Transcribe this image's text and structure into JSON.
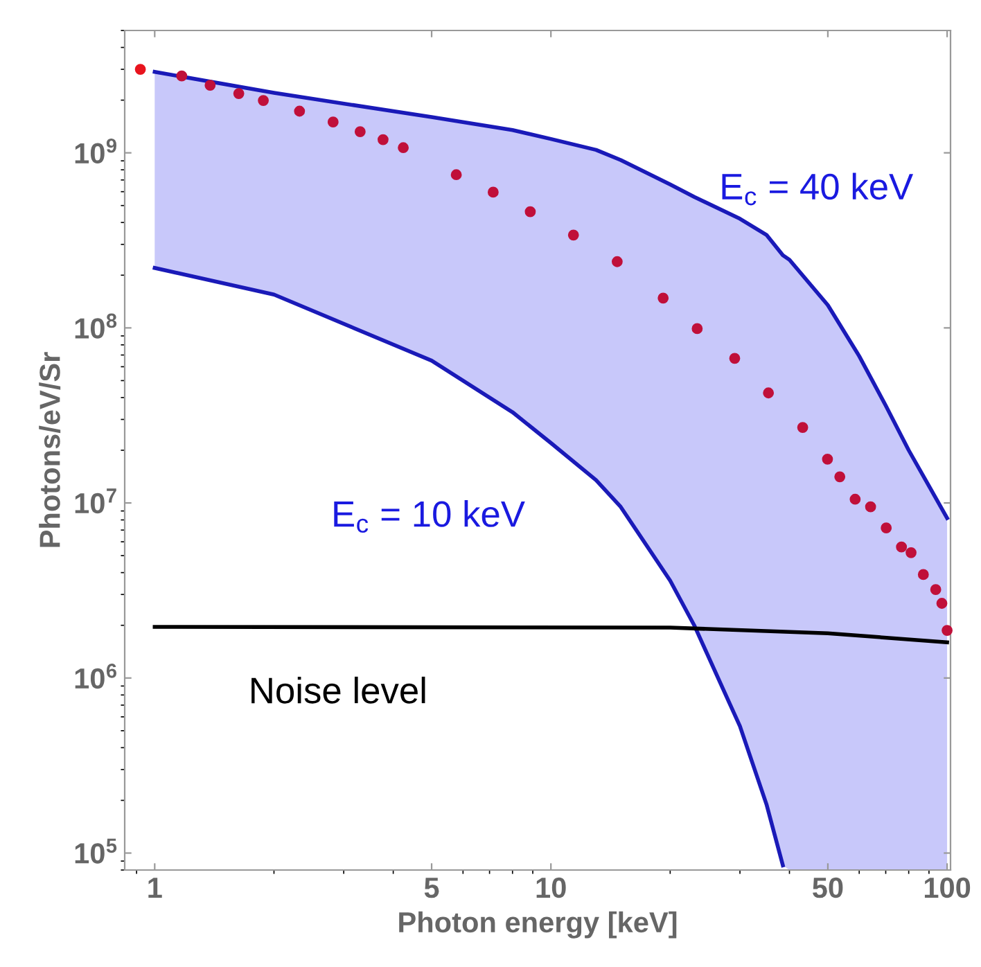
{
  "chart_data": {
    "type": "line",
    "xlabel": "Photon energy [keV]",
    "ylabel": "Photons/eV/Sr",
    "log": "xy",
    "grid": false,
    "legend": false,
    "xlim": [
      0.84,
      102
    ],
    "ylim": [
      80000,
      5000000000
    ],
    "xticks": [
      1,
      5,
      10,
      50,
      100
    ],
    "yticks": [
      {
        "value": 100000,
        "label": "10$^{5}$"
      },
      {
        "value": 1000000,
        "label": "10$^{6}$"
      },
      {
        "value": 10000000,
        "label": "10$^{7}$"
      },
      {
        "value": 100000000,
        "label": "10$^{8}$"
      },
      {
        "value": 1000000000,
        "label": "10$^{9}$"
      }
    ],
    "series": [
      {
        "name": "E$_{c}$ = 40 keV",
        "color": "#1a1ab8",
        "marker": "none",
        "x": [
          1,
          2,
          5,
          8,
          10,
          13,
          15,
          20,
          23,
          30,
          35,
          38.5,
          40,
          50,
          60,
          70,
          80,
          90,
          100
        ],
        "values": [
          2900000000,
          2200000000,
          1600000000,
          1350000000,
          1200000000,
          1040000000,
          910000000,
          660000000,
          560000000,
          420000000,
          340000000,
          260000000,
          245000000,
          135000000,
          69000000,
          36000000,
          20000000,
          12500000,
          8200000
        ],
        "lower": [
          220000000,
          155000000,
          65000000,
          33000000,
          22000000,
          13500000,
          9500000,
          3600000,
          2000000,
          530000,
          190000,
          85000,
          80000,
          80000,
          80000,
          80000,
          80000,
          80000,
          80000
        ],
        "upper": [
          2900000000,
          2200000000,
          1600000000,
          1350000000,
          1200000000,
          1040000000,
          910000000,
          660000000,
          560000000,
          420000000,
          340000000,
          260000000,
          245000000,
          135000000,
          69000000,
          36000000,
          20000000,
          12500000,
          8200000
        ]
      },
      {
        "name": "E$_{c}$ = 10 keV",
        "color": "#1a1ab8",
        "marker": "none",
        "x": [
          1,
          2,
          5,
          8,
          10,
          13,
          15,
          20,
          23,
          30,
          35,
          38.5
        ],
        "values": [
          220000000,
          155000000,
          65000000,
          33000000,
          22000000,
          13500000,
          9500000,
          3600000,
          2000000,
          530000,
          190000,
          85000
        ]
      },
      {
        "name": "Noise level",
        "color": "#000000",
        "marker": "none",
        "x": [
          1,
          20,
          50,
          100
        ],
        "values": [
          1960000,
          1940000,
          1800000,
          1600000
        ]
      },
      {
        "type": "scatter",
        "color": "#e8141e",
        "marker": "circle",
        "x": [
          0.92
        ],
        "values": [
          3000000000
        ]
      },
      {
        "type": "scatter",
        "color": "#c0103a",
        "marker": "circle",
        "x": [
          1.17,
          1.38,
          1.63,
          1.88,
          2.32,
          2.82,
          3.3,
          3.77,
          4.24,
          5.77,
          7.15,
          8.87,
          11.4,
          14.7,
          19.2,
          23.4,
          29.1,
          35.4,
          43.2,
          49.9,
          53.6,
          58.6,
          64.1,
          70.2,
          76.7,
          81.1,
          87.1,
          93.6,
          97.0,
          100
        ],
        "values": [
          2750000000,
          2430000000,
          2180000000,
          1990000000,
          1730000000,
          1500000000,
          1320000000,
          1190000000,
          1070000000,
          750000000,
          596000000,
          461000000,
          339000000,
          239000000,
          148000000,
          99000000,
          67000000,
          42500000,
          27000000,
          17800000,
          14100000,
          10500000,
          9500000,
          7200000,
          5600000,
          5200000,
          3900000,
          3200000,
          2670000,
          1870000
        ]
      }
    ]
  }
}
